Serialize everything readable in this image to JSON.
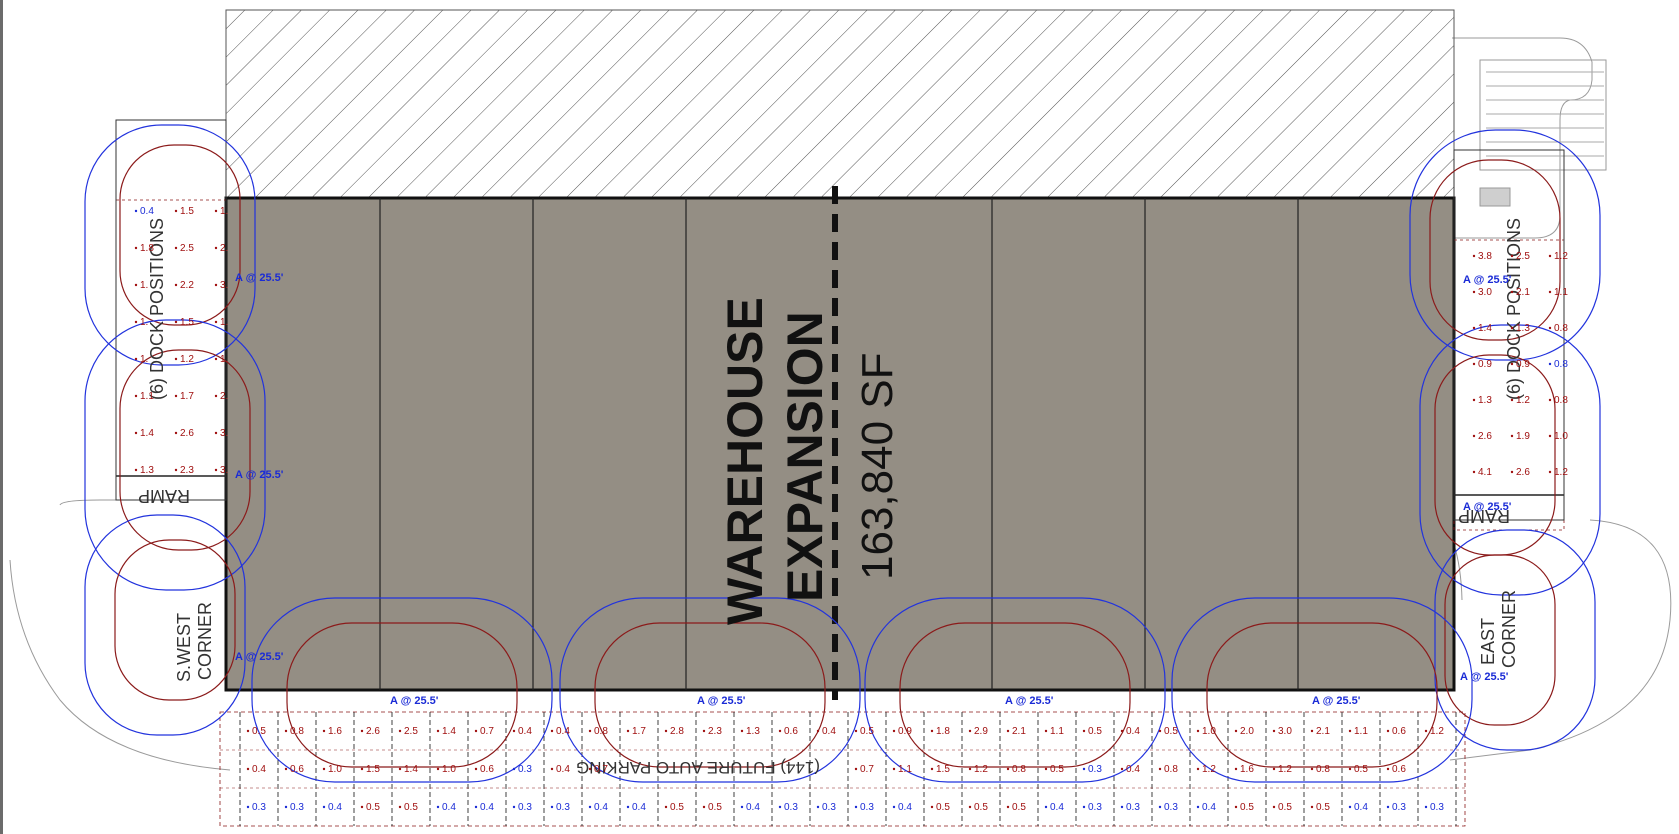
{
  "building": {
    "title_line1": "WAREHOUSE",
    "title_line2": "EXPANSION",
    "area": "163,840 SF"
  },
  "side_labels": {
    "west_dock": "(6) DOCK POSITIONS",
    "east_dock": "(6) DOCK POSITIONS",
    "west_ramp": "RAMP",
    "east_ramp": "RAMP",
    "southwest_line1": "S.WEST",
    "southwest_line2": "CORNER",
    "east_line1": "EAST",
    "east_line2": "CORNER",
    "parking": "(144) FUTURE AUTO PARKING"
  },
  "fixture_labels": {
    "west": [
      "A @ 25.5'",
      "A @ 25.5'",
      "A @ 25.5'"
    ],
    "east": [
      "A @ 25.5'",
      "A @ 25.5'",
      "A @ 25.5'"
    ],
    "south": [
      "A @ 25.5'",
      "A @ 25.5'",
      "A @ 25.5'",
      "A @ 25.5'"
    ]
  },
  "west_grid": [
    [
      "0.4",
      "1.5",
      "1."
    ],
    [
      "1.8",
      "2.5",
      "2."
    ],
    [
      "1.",
      "2.2",
      "3."
    ],
    [
      "1.",
      "1.5",
      "1."
    ],
    [
      "1.",
      "1.2",
      "1."
    ],
    [
      "1.1",
      "1.7",
      "2."
    ],
    [
      "1.4",
      "2.6",
      "3."
    ],
    [
      "1.3",
      "2.3",
      "3."
    ]
  ],
  "east_grid": [
    [
      "3.8",
      "2.5",
      "1.2"
    ],
    [
      "3.0",
      "2.1",
      "1.1"
    ],
    [
      "1.4",
      "1.3",
      "0.8"
    ],
    [
      "0.9",
      "0.9",
      "0.8"
    ],
    [
      "1.3",
      "1.2",
      "0.8"
    ],
    [
      "2.6",
      "1.9",
      "1.0"
    ],
    [
      "4.1",
      "2.6",
      "1.2"
    ]
  ],
  "parking_grid": {
    "row1": [
      "0.5",
      "0.8",
      "1.6",
      "2.6",
      "2.5",
      "1.4",
      "0.7",
      "0.4",
      "0.4",
      "0.8",
      "1.7",
      "2.8",
      "2.3",
      "1.3",
      "0.6",
      "0.4",
      "0.5",
      "0.9",
      "1.8",
      "2.9",
      "2.1",
      "1.1",
      "0.5",
      "0.4",
      "0.5",
      "1.0",
      "2.0",
      "3.0",
      "2.1",
      "1.1",
      "0.6",
      "1.2"
    ],
    "row2": [
      "0.4",
      "0.6",
      "1.0",
      "1.5",
      "1.4",
      "1.0",
      "0.6",
      "0.3",
      "0.4",
      "0.7",
      "",
      "",
      "",
      "",
      "",
      "",
      "0.7",
      "1.1",
      "1.5",
      "1.2",
      "0.8",
      "0.5",
      "0.3",
      "0.4",
      "0.8",
      "1.2",
      "1.6",
      "1.2",
      "0.8",
      "0.5",
      "0.6"
    ],
    "row3": [
      "0.3",
      "0.3",
      "0.4",
      "0.5",
      "0.5",
      "0.4",
      "0.4",
      "0.3",
      "0.3",
      "0.4",
      "0.4",
      "0.5",
      "0.5",
      "0.4",
      "0.3",
      "0.3",
      "0.3",
      "0.4",
      "0.5",
      "0.5",
      "0.5",
      "0.4",
      "0.3",
      "0.3",
      "0.3",
      "0.4",
      "0.5",
      "0.5",
      "0.5",
      "0.4",
      "0.3",
      "0.3"
    ]
  },
  "colors": {
    "building_fill": "#948e84",
    "contour_blue": "#2233dd",
    "contour_red": "#8b1a1a",
    "value_red": "#a01010",
    "value_blue": "#1a2bd6",
    "hatch": "#444444"
  }
}
